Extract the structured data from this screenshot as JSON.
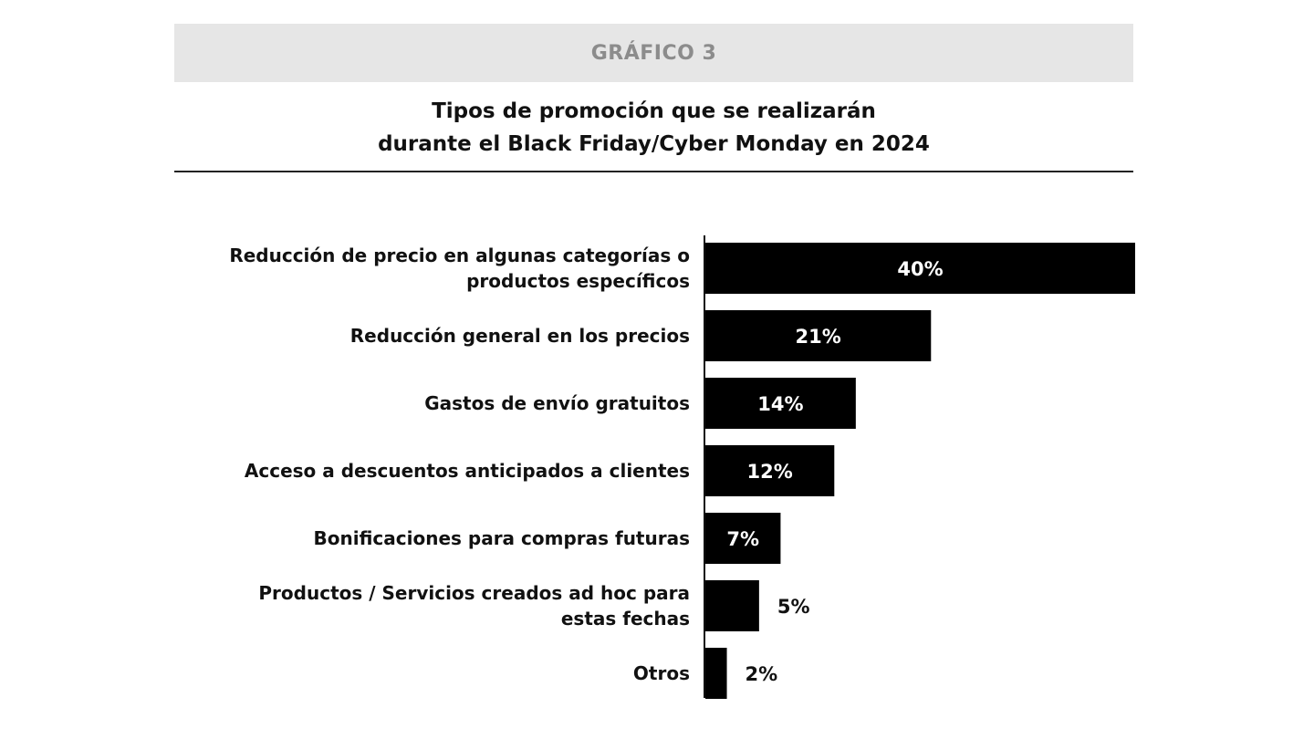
{
  "header": {
    "label": "GRÁFICO 3"
  },
  "title": {
    "line1": "Tipos de promoción que se realizarán",
    "line2": "durante el Black Friday/Cyber Monday en 2024"
  },
  "colors": {
    "bar": "#000000",
    "header_band": "#e6e6e6",
    "header_text": "#8c8c8c"
  },
  "chart_data": {
    "type": "bar",
    "orientation": "horizontal",
    "categories": [
      [
        "Reducción de precio en algunas categorías o",
        "productos específicos"
      ],
      [
        "Reducción general en los precios"
      ],
      [
        "Gastos de envío gratuitos"
      ],
      [
        "Acceso a descuentos anticipados a clientes"
      ],
      [
        "Bonificaciones para compras futuras"
      ],
      [
        "Productos / Servicios creados ad hoc para",
        "estas fechas"
      ],
      [
        "Otros"
      ]
    ],
    "values": [
      40,
      21,
      14,
      12,
      7,
      5,
      2
    ],
    "value_labels": [
      "40%",
      "21%",
      "14%",
      "12%",
      "7%",
      "5%",
      "2%"
    ],
    "xlim": [
      0,
      40
    ],
    "grid": false,
    "legend": "none"
  }
}
